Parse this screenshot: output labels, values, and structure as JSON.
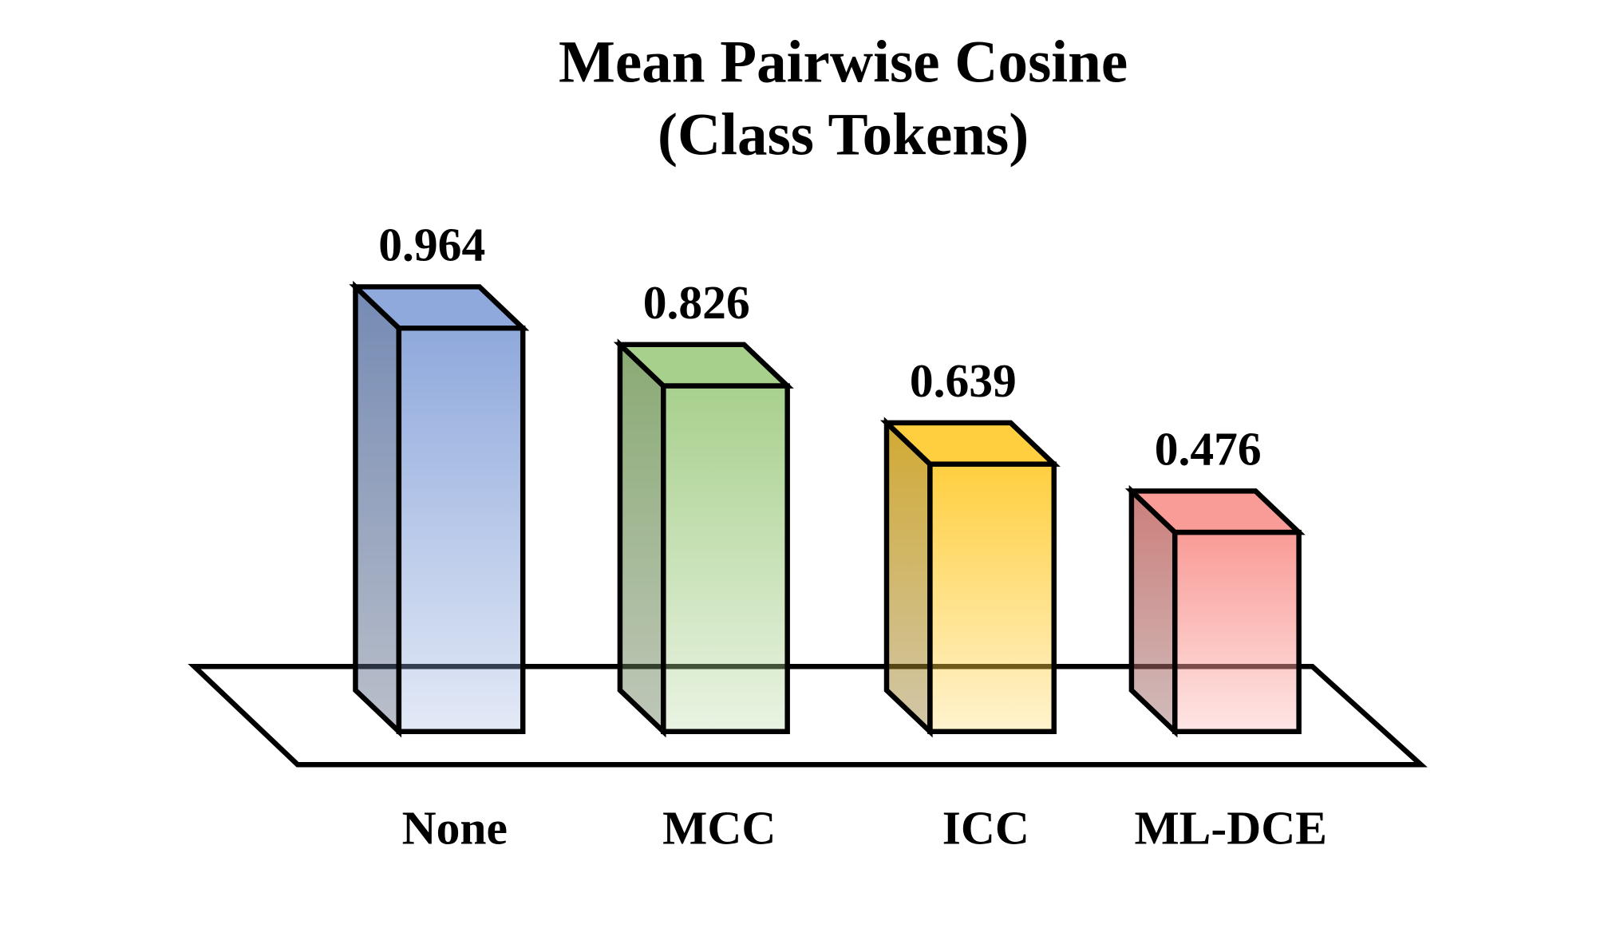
{
  "chart_data": {
    "type": "bar3d",
    "title": "Mean Pairwise Cosine",
    "subtitle": "(Class Tokens)",
    "categories": [
      "None",
      "MCC",
      "ICC",
      "ML-DCE"
    ],
    "values": [
      0.964,
      0.826,
      0.639,
      0.476
    ],
    "colors": [
      "#8fa9dc",
      "#a8d08d",
      "#ffcf3f",
      "#f99b96"
    ]
  }
}
